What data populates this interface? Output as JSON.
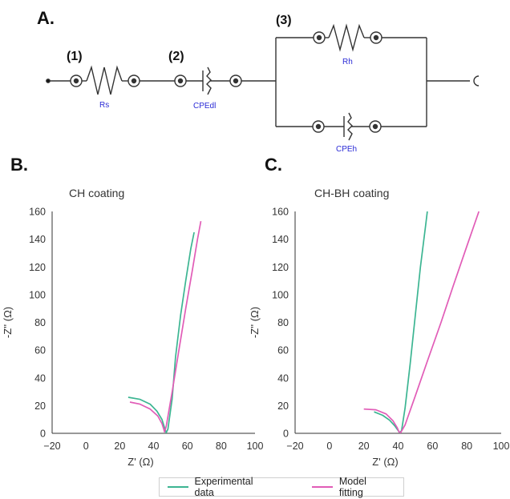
{
  "panels": {
    "a": "A.",
    "b": "B.",
    "c": "C."
  },
  "circuit": {
    "labels": {
      "one": "(1)",
      "two": "(2)",
      "three": "(3)"
    },
    "components": {
      "rs": "Rs",
      "cpedl": "CPEdl",
      "rh": "Rh",
      "cpeh": "CPEh"
    }
  },
  "colors": {
    "experimental": "#3cb592",
    "model": "#e15cb7"
  },
  "legend": {
    "experimental": "Experimental data",
    "model": "Model fitting"
  },
  "chart_data": [
    {
      "type": "line",
      "title": "CH coating",
      "xlabel": "Z' (Ω)",
      "ylabel": "-Z'' (Ω)",
      "xlim": [
        -20,
        100
      ],
      "ylim": [
        0,
        160
      ],
      "xticks": [
        -20,
        0,
        20,
        40,
        60,
        80,
        100
      ],
      "yticks": [
        0,
        20,
        40,
        60,
        80,
        100,
        120,
        140,
        160
      ],
      "series": [
        {
          "name": "Experimental data",
          "points": [
            [
              25,
              26
            ],
            [
              32,
              24.5
            ],
            [
              38,
              21
            ],
            [
              42,
              16
            ],
            [
              45,
              10
            ],
            [
              46.5,
              4
            ],
            [
              47.5,
              0.5
            ],
            [
              48.5,
              3
            ],
            [
              51,
              25
            ],
            [
              53,
              55
            ],
            [
              56,
              85
            ],
            [
              59,
              110
            ],
            [
              62,
              133
            ],
            [
              64,
              145
            ]
          ]
        },
        {
          "name": "Model fitting",
          "points": [
            [
              26,
              22.5
            ],
            [
              32,
              21
            ],
            [
              38,
              17.5
            ],
            [
              42.5,
              12.5
            ],
            [
              45,
              7
            ],
            [
              46,
              3
            ],
            [
              46.5,
              1
            ],
            [
              47.5,
              5
            ],
            [
              51,
              30
            ],
            [
              55,
              60
            ],
            [
              59,
              90
            ],
            [
              63,
              118
            ],
            [
              66,
              140
            ],
            [
              68,
              153
            ]
          ]
        }
      ]
    },
    {
      "type": "line",
      "title": "CH-BH coating",
      "xlabel": "Z' (Ω)",
      "ylabel": "-Z'' (Ω)",
      "xlim": [
        -20,
        100
      ],
      "ylim": [
        0,
        160
      ],
      "xticks": [
        -20,
        0,
        20,
        40,
        60,
        80,
        100
      ],
      "yticks": [
        0,
        20,
        40,
        60,
        80,
        100,
        120,
        140,
        160
      ],
      "series": [
        {
          "name": "Experimental data",
          "points": [
            [
              26,
              15.5
            ],
            [
              31,
              13
            ],
            [
              35,
              9.5
            ],
            [
              38,
              5.5
            ],
            [
              40,
              2
            ],
            [
              41,
              0.5
            ],
            [
              42,
              2
            ],
            [
              44,
              18
            ],
            [
              47,
              50
            ],
            [
              50,
              85
            ],
            [
              53,
              120
            ],
            [
              56,
              150
            ],
            [
              57,
              160
            ]
          ]
        },
        {
          "name": "Model fitting",
          "points": [
            [
              20,
              17.5
            ],
            [
              27,
              17
            ],
            [
              33,
              14
            ],
            [
              37,
              9
            ],
            [
              39.5,
              4
            ],
            [
              40.5,
              1
            ],
            [
              41.5,
              0.5
            ],
            [
              44,
              6
            ],
            [
              50,
              27
            ],
            [
              57,
              52
            ],
            [
              65,
              80
            ],
            [
              72,
              106
            ],
            [
              80,
              135
            ],
            [
              87,
              160
            ]
          ]
        }
      ]
    }
  ]
}
